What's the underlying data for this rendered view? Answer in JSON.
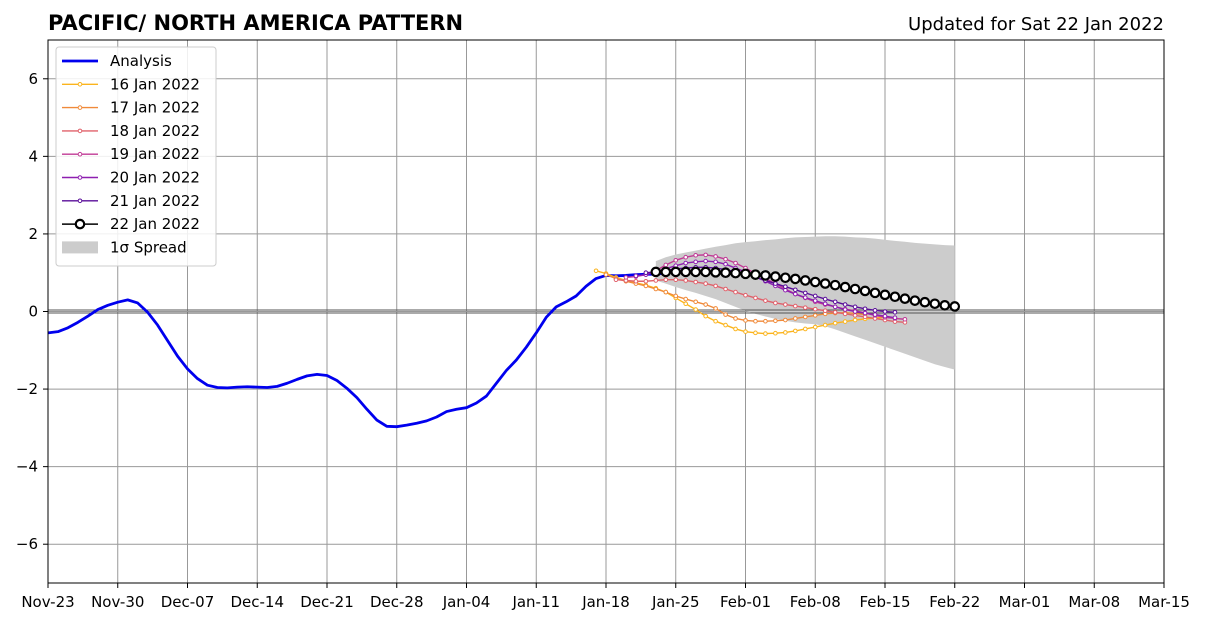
{
  "chart_data": {
    "type": "line",
    "title": "PACIFIC/ NORTH AMERICA PATTERN",
    "subtitle": "Updated for Sat 22 Jan 2022",
    "xlabel": "",
    "ylabel": "",
    "ylim": [
      -7,
      7
    ],
    "xlim": [
      "2021-11-23",
      "2022-03-15"
    ],
    "grid": true,
    "legend_position": "top-left",
    "x_ticks": [
      "Nov-23",
      "Nov-30",
      "Dec-07",
      "Dec-14",
      "Dec-21",
      "Dec-28",
      "Jan-04",
      "Jan-11",
      "Jan-18",
      "Jan-25",
      "Feb-01",
      "Feb-08",
      "Feb-15",
      "Feb-22",
      "Mar-01",
      "Mar-08",
      "Mar-15"
    ],
    "y_ticks": [
      "6",
      "4",
      "2",
      "0",
      "−2",
      "−4",
      "−6"
    ],
    "y_tick_values": [
      6,
      4,
      2,
      0,
      -2,
      -4,
      -6
    ],
    "series": [
      {
        "name": "Analysis",
        "color": "#0000ee",
        "style": "thick-line",
        "start": "2021-11-23",
        "values": [
          -0.55,
          -0.52,
          -0.42,
          -0.28,
          -0.12,
          0.05,
          0.16,
          0.24,
          0.3,
          0.22,
          -0.02,
          -0.35,
          -0.75,
          -1.15,
          -1.48,
          -1.73,
          -1.9,
          -1.96,
          -1.97,
          -1.95,
          -1.94,
          -1.95,
          -1.96,
          -1.93,
          -1.85,
          -1.75,
          -1.66,
          -1.62,
          -1.65,
          -1.78,
          -1.98,
          -2.22,
          -2.52,
          -2.8,
          -2.96,
          -2.97,
          -2.93,
          -2.88,
          -2.82,
          -2.72,
          -2.58,
          -2.52,
          -2.48,
          -2.36,
          -2.18,
          -1.85,
          -1.52,
          -1.25,
          -0.92,
          -0.55,
          -0.15,
          0.12,
          0.25,
          0.4,
          0.65,
          0.85,
          0.93,
          0.92,
          0.93,
          0.95,
          0.96,
          0.96,
          1.0
        ]
      },
      {
        "name": "16 Jan 2022",
        "color": "#fbb41d",
        "style": "small-dots",
        "start": "2022-01-17",
        "values": [
          1.05,
          0.98,
          0.88,
          0.8,
          0.74,
          0.68,
          0.6,
          0.5,
          0.35,
          0.2,
          0.05,
          -0.12,
          -0.25,
          -0.35,
          -0.45,
          -0.52,
          -0.55,
          -0.57,
          -0.56,
          -0.54,
          -0.5,
          -0.45,
          -0.4,
          -0.35,
          -0.3,
          -0.26,
          -0.22,
          -0.19,
          -0.17,
          -0.15
        ]
      },
      {
        "name": "17 Jan 2022",
        "color": "#f08a3a",
        "style": "small-dots",
        "start": "2022-01-18",
        "values": [
          0.95,
          0.85,
          0.78,
          0.72,
          0.66,
          0.58,
          0.5,
          0.4,
          0.32,
          0.25,
          0.18,
          0.08,
          -0.08,
          -0.18,
          -0.23,
          -0.25,
          -0.25,
          -0.24,
          -0.22,
          -0.18,
          -0.14,
          -0.1,
          -0.06,
          -0.04,
          -0.03,
          -0.05,
          -0.08
        ]
      },
      {
        "name": "18 Jan 2022",
        "color": "#e0606a",
        "style": "small-dots",
        "start": "2022-01-19",
        "values": [
          0.82,
          0.8,
          0.78,
          0.78,
          0.8,
          0.82,
          0.82,
          0.8,
          0.76,
          0.72,
          0.66,
          0.58,
          0.5,
          0.42,
          0.35,
          0.28,
          0.22,
          0.18,
          0.14,
          0.1,
          0.06,
          0.02,
          -0.02,
          -0.06,
          -0.1,
          -0.14,
          -0.18,
          -0.22,
          -0.26,
          -0.28
        ]
      },
      {
        "name": "19 Jan 2022",
        "color": "#c03a95",
        "style": "small-dots",
        "start": "2022-01-20",
        "values": [
          0.88,
          0.9,
          0.95,
          1.05,
          1.2,
          1.32,
          1.4,
          1.45,
          1.46,
          1.42,
          1.35,
          1.25,
          1.12,
          0.98,
          0.85,
          0.72,
          0.58,
          0.45,
          0.35,
          0.25,
          0.18,
          0.12,
          0.06,
          0.02,
          -0.04,
          -0.1,
          -0.15,
          -0.18,
          -0.2
        ]
      },
      {
        "name": "20 Jan 2022",
        "color": "#8e1fb0",
        "style": "small-dots",
        "start": "2022-01-21",
        "values": [
          0.92,
          0.95,
          1.02,
          1.1,
          1.18,
          1.25,
          1.28,
          1.3,
          1.28,
          1.22,
          1.12,
          1.02,
          0.9,
          0.78,
          0.66,
          0.55,
          0.45,
          0.36,
          0.28,
          0.2,
          0.12,
          0.05,
          0.0,
          -0.04,
          -0.08,
          -0.12,
          -0.16
        ]
      },
      {
        "name": "21 Jan 2022",
        "color": "#5a0e9a",
        "style": "small-dots",
        "start": "2022-01-22",
        "values": [
          1.0,
          1.02,
          1.06,
          1.1,
          1.12,
          1.14,
          1.14,
          1.12,
          1.08,
          1.02,
          0.96,
          0.88,
          0.8,
          0.72,
          0.64,
          0.56,
          0.48,
          0.4,
          0.32,
          0.25,
          0.18,
          0.12,
          0.07,
          0.03,
          0.0,
          -0.02
        ]
      },
      {
        "name": "22 Jan 2022",
        "color": "#000000",
        "style": "open-circles",
        "start": "2022-01-23",
        "values": [
          1.02,
          1.02,
          1.02,
          1.02,
          1.02,
          1.02,
          1.01,
          1.0,
          0.99,
          0.97,
          0.95,
          0.93,
          0.9,
          0.87,
          0.84,
          0.8,
          0.76,
          0.72,
          0.68,
          0.63,
          0.58,
          0.53,
          0.48,
          0.43,
          0.38,
          0.33,
          0.28,
          0.24,
          0.2,
          0.16,
          0.13
        ]
      }
    ],
    "spread": {
      "name": "1σ Spread",
      "color": "#cccccc",
      "start": "2022-01-23",
      "upper": [
        1.3,
        1.4,
        1.47,
        1.52,
        1.57,
        1.62,
        1.67,
        1.71,
        1.76,
        1.79,
        1.81,
        1.84,
        1.86,
        1.89,
        1.91,
        1.92,
        1.93,
        1.94,
        1.94,
        1.93,
        1.91,
        1.9,
        1.88,
        1.85,
        1.82,
        1.8,
        1.77,
        1.75,
        1.73,
        1.71,
        1.7
      ],
      "lower": [
        0.8,
        0.72,
        0.63,
        0.55,
        0.48,
        0.4,
        0.32,
        0.22,
        0.12,
        0.02,
        -0.06,
        -0.13,
        -0.19,
        -0.24,
        -0.28,
        -0.31,
        -0.33,
        -0.38,
        -0.46,
        -0.55,
        -0.64,
        -0.73,
        -0.82,
        -0.91,
        -1.0,
        -1.09,
        -1.18,
        -1.27,
        -1.36,
        -1.43,
        -1.5
      ]
    }
  }
}
